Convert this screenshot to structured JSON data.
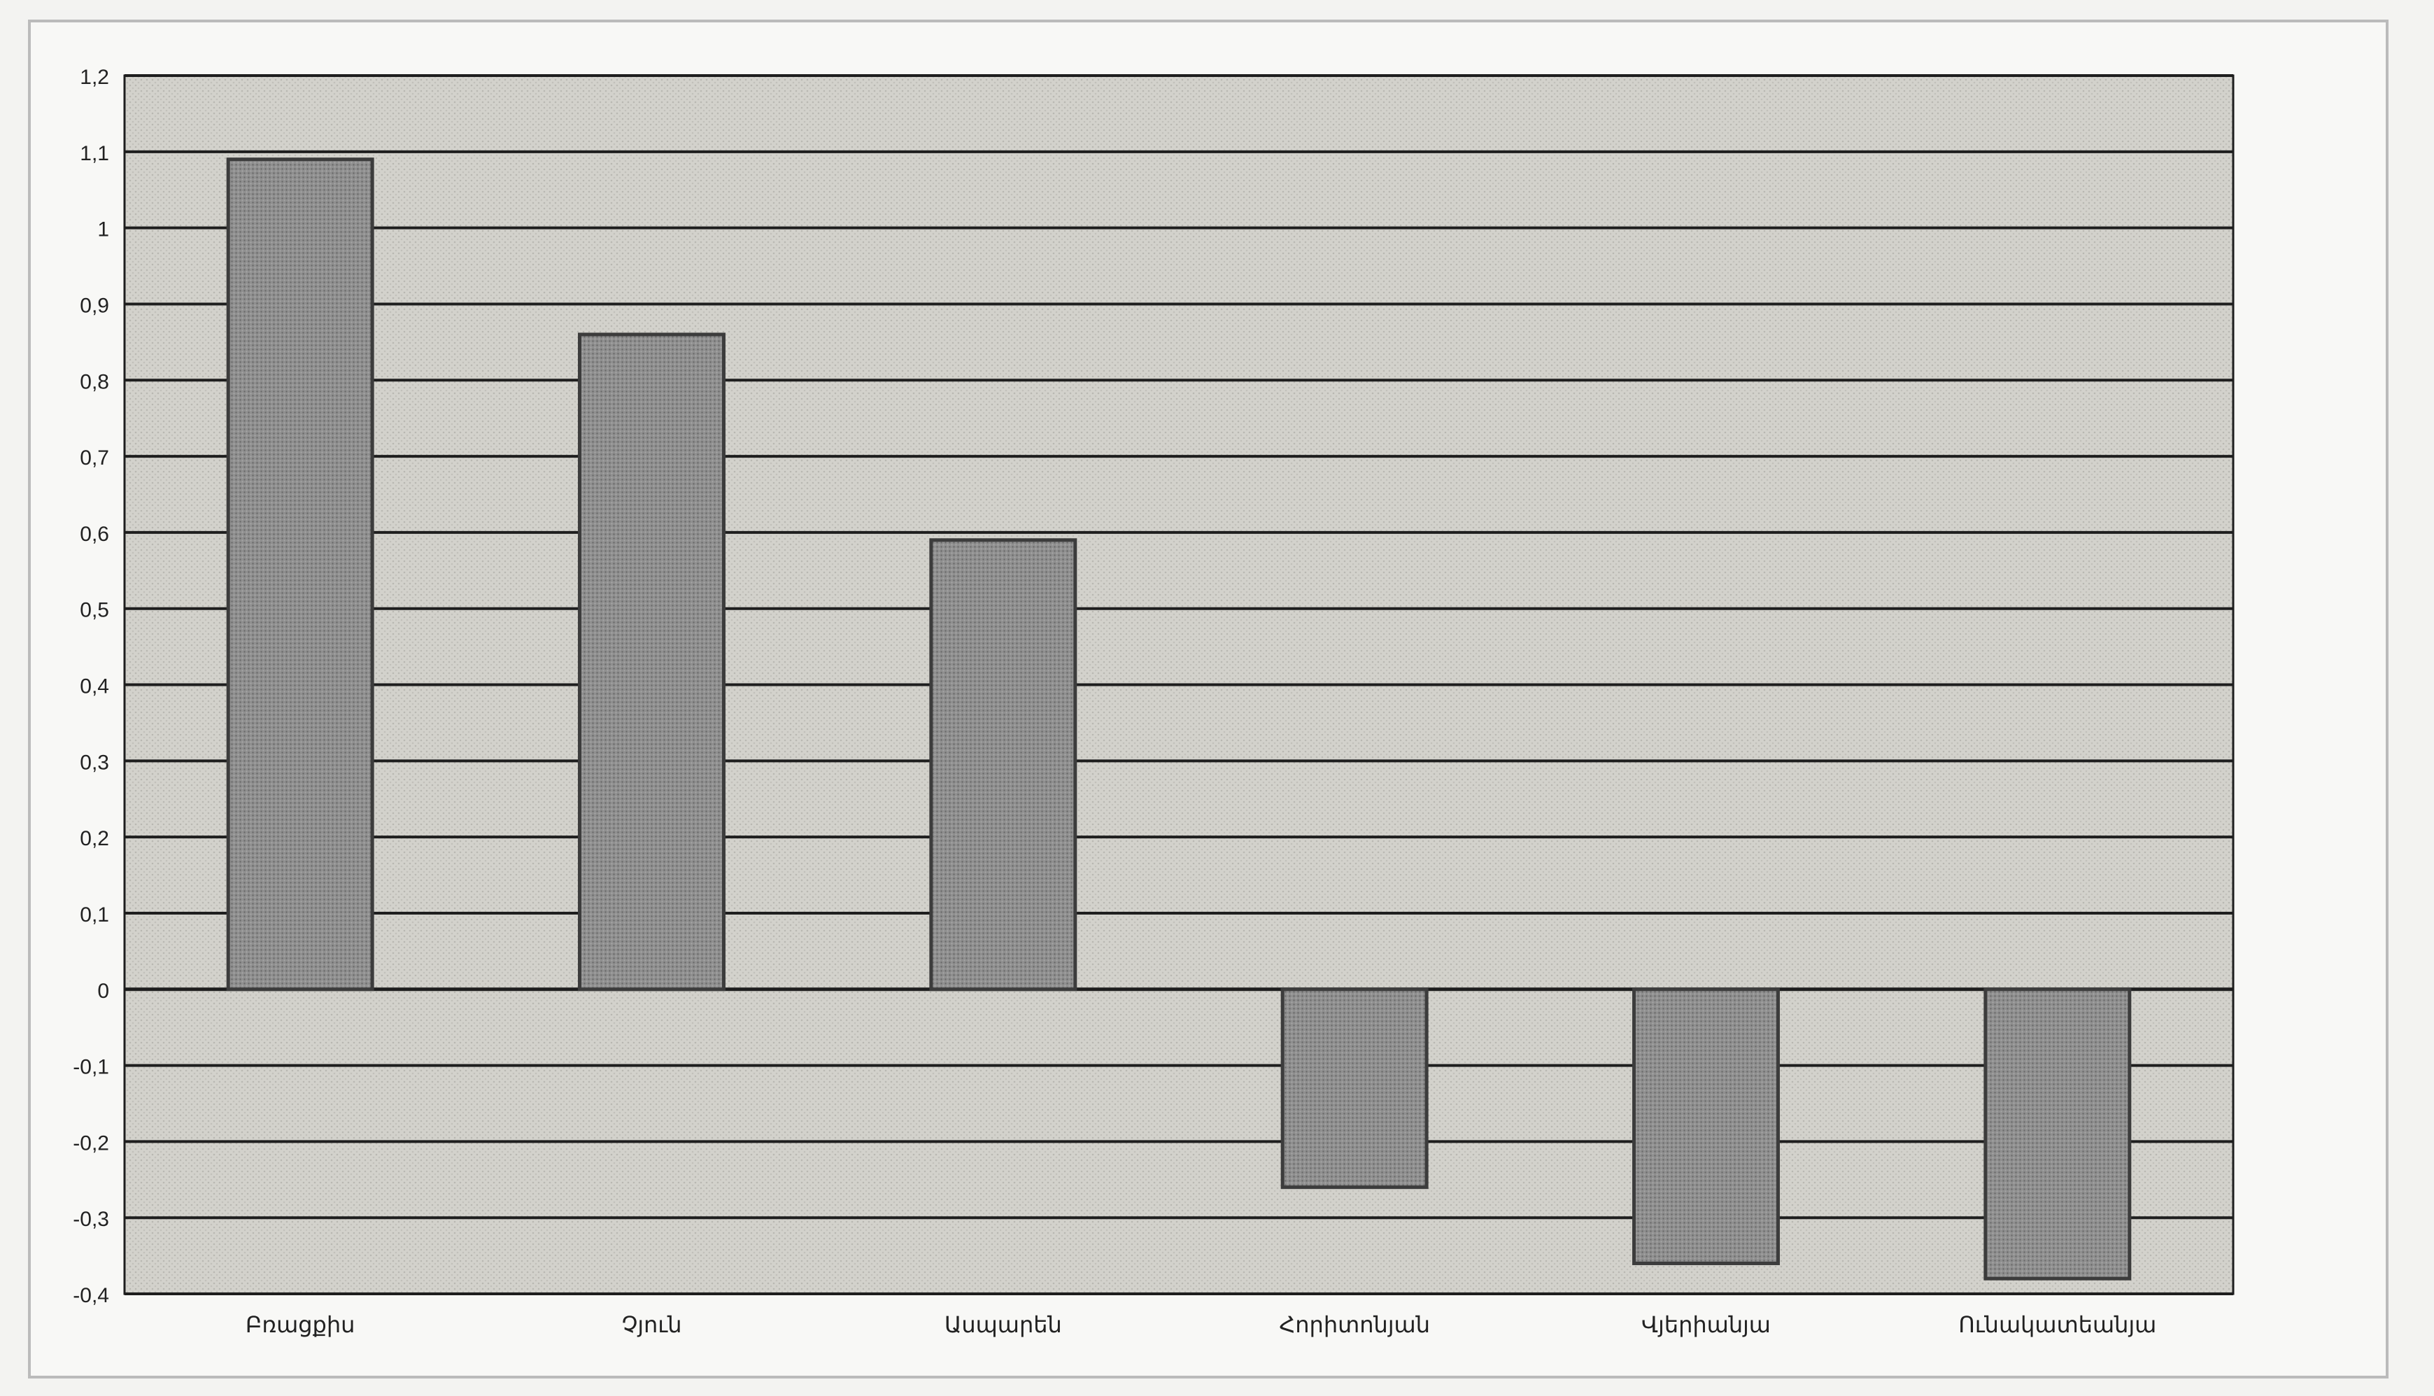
{
  "chart_data": {
    "type": "bar",
    "title": "",
    "xlabel": "",
    "ylabel": "",
    "categories": [
      "Բռացքիս",
      "Չյուն",
      "Ասպարեն",
      "Հորիտոնյան",
      "Վյերիանյա",
      "Ունակատեանյա"
    ],
    "values": [
      1.09,
      0.86,
      0.59,
      -0.26,
      -0.36,
      -0.38
    ],
    "ylim": [
      -0.4,
      1.2
    ],
    "yticks": [
      1.2,
      1.1,
      1,
      0.9,
      0.8,
      0.7,
      0.6,
      0.5,
      0.4,
      0.3,
      0.2,
      0.1,
      0,
      -0.1,
      -0.2,
      -0.3,
      -0.4
    ],
    "ytick_labels": [
      "1,2",
      "1,1",
      "1",
      "0,9",
      "0,8",
      "0,7",
      "0,6",
      "0,5",
      "0,4",
      "0,3",
      "0,2",
      "0,1",
      "0",
      "-0,1",
      "-0,2",
      "-0,3",
      "-0,4"
    ],
    "grid": true,
    "legend": "none"
  },
  "colors": {
    "bar_fill": "#8c8c8c",
    "bar_edge": "#3c3c3c",
    "plot_background": "#d9d8d2",
    "gridline": "#1e1e1e",
    "axis_text": "#222222"
  }
}
